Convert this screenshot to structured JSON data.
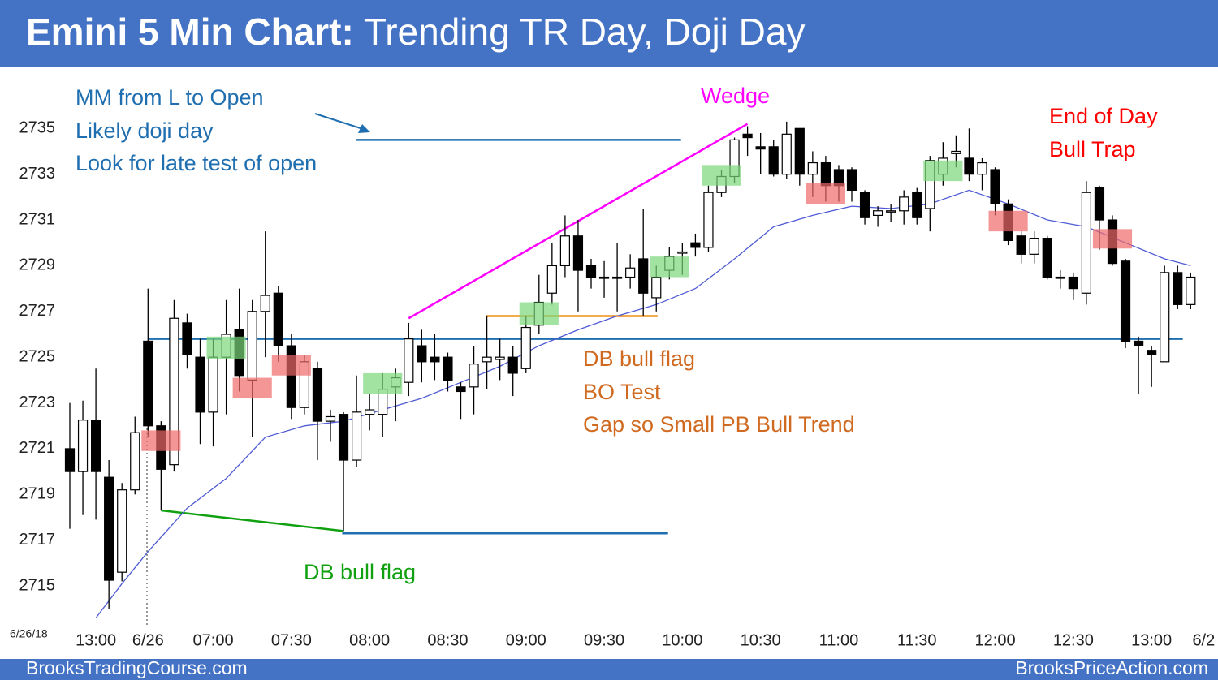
{
  "chart_data": {
    "type": "candlestick",
    "title_bold": "Emini 5 Min Chart:",
    "title_rest": "Trending TR Day, Doji Day",
    "date_label": "6/26/18",
    "footer_left": "BrooksTradingCourse.com",
    "footer_right": "BrooksPriceAction.com",
    "categories": [
      null,
      null,
      "13:00",
      null,
      null,
      null,
      "6/26",
      null,
      null,
      null,
      null,
      "07:00",
      null,
      null,
      null,
      null,
      null,
      "07:30",
      null,
      null,
      null,
      null,
      null,
      "08:00",
      null,
      null,
      null,
      null,
      null,
      "08:30",
      null,
      null,
      null,
      null,
      null,
      "09:00",
      null,
      null,
      null,
      null,
      null,
      "09:30",
      null,
      null,
      null,
      null,
      null,
      "10:00",
      null,
      null,
      null,
      null,
      null,
      "10:30",
      null,
      null,
      null,
      null,
      null,
      "11:00",
      null,
      null,
      null,
      null,
      null,
      "11:30",
      null,
      null,
      null,
      null,
      null,
      "12:00",
      null,
      null,
      null,
      null,
      null,
      "12:30",
      null,
      null,
      null,
      null,
      null,
      "13:00",
      null,
      null,
      null,
      "6/2"
    ],
    "open": [
      2721,
      2720,
      2722.25,
      2719.75,
      2715.6,
      2719.2,
      2725.7,
      2722,
      2720.3,
      2726.5,
      2725,
      2722.6,
      2725,
      2726.2,
      2724,
      2727,
      2727.8,
      2725.5,
      2722.8,
      2724.5,
      2722.2,
      2722.5,
      2720.5,
      2722.5,
      2722.5,
      2723.7,
      2723.9,
      2725.5,
      2725,
      2725,
      2723.7,
      2723.7,
      2724.8,
      2724.9,
      2725,
      2724.5,
      2726.4,
      2727.8,
      2729,
      2730.3,
      2729,
      2728.5,
      2728.5,
      2728.5,
      2729.3,
      2727.6,
      2728.8,
      2729.6,
      2730,
      2729.8,
      2732.2,
      2732.9,
      2734.75,
      2734.2,
      2734.2,
      2733,
      2735,
      2733,
      2733.5,
      2733.2,
      2733.2,
      2732.2,
      2731.2,
      2731.4,
      2731.4,
      2732.2,
      2731.5,
      2733,
      2733.9,
      2733.7,
      2733,
      2733.2,
      2731.7,
      2730.3,
      2729.5,
      2730.2,
      2728.5,
      2728.5,
      2727.8,
      2732.4,
      2731,
      2729.2,
      2725.7,
      2725.3,
      2724.8,
      2728.7,
      2727.3,
      null
    ],
    "high": [
      2723,
      2723.1,
      2724.5,
      2720.5,
      2719.5,
      2722.4,
      2728,
      2722.2,
      2727.5,
      2726.9,
      2725.8,
      2725.8,
      2727.5,
      2728,
      2727.5,
      2730.5,
      2728.1,
      2726,
      2725.1,
      2724.8,
      2722.7,
      2722.6,
      2724.2,
      2723.4,
      2724.3,
      2724.5,
      2726.5,
      2726.2,
      2726,
      2725.2,
      2723.9,
      2725.5,
      2726.8,
      2725.8,
      2725.5,
      2726.8,
      2728.6,
      2730,
      2731.2,
      2731,
      2729.3,
      2729.2,
      2730,
      2729.5,
      2731.5,
      2729,
      2729.8,
      2730,
      2730.4,
      2732.5,
      2733.2,
      2734.6,
      2735.1,
      2734.8,
      2734.5,
      2735.3,
      2735,
      2734,
      2733.8,
      2733.4,
      2733.3,
      2732.3,
      2731.6,
      2731.7,
      2732.3,
      2732.4,
      2733.8,
      2734.4,
      2734.7,
      2735,
      2733.7,
      2733.3,
      2731.9,
      2730.5,
      2730.5,
      2730.3,
      2728.8,
      2728.7,
      2732.7,
      2732.5,
      2731.2,
      2729.3,
      2725.9,
      2725.5,
      2729,
      2729,
      2728.7,
      null
    ],
    "low": [
      2717.5,
      2718.1,
      2717.9,
      2714,
      2715.2,
      2719,
      2721.5,
      2718.3,
      2720,
      2724.5,
      2721.2,
      2721.1,
      2722.5,
      2723.5,
      2721.5,
      2725,
      2724.8,
      2722.3,
      2722.5,
      2720.5,
      2721.3,
      2717.4,
      2720.2,
      2721.8,
      2721.5,
      2722.2,
      2723.3,
      2723.9,
      2724,
      2723.5,
      2722.3,
      2722.5,
      2723.6,
      2724,
      2723.3,
      2724.3,
      2726,
      2727.3,
      2728.5,
      2727,
      2728,
      2727.6,
      2727,
      2728,
      2726.8,
      2727,
      2728.4,
      2728.6,
      2729.4,
      2729.6,
      2732,
      2732.6,
      2733.8,
      2733,
      2732.9,
      2732.8,
      2732.5,
      2732,
      2731.8,
      2731.8,
      2731.8,
      2730.8,
      2730.7,
      2730.9,
      2730.8,
      2730.8,
      2730.5,
      2732.5,
      2733.3,
      2732.7,
      2732.3,
      2731.2,
      2729.9,
      2729.1,
      2729.1,
      2728.4,
      2728,
      2727.5,
      2727.3,
      2729.7,
      2729,
      2725.4,
      2723.4,
      2723.7,
      2724.8,
      2727.1,
      2727.1,
      null
    ],
    "close": [
      2720,
      2722.25,
      2720,
      2715.25,
      2719.2,
      2721.7,
      2722,
      2720.1,
      2726.7,
      2725.1,
      2722.6,
      2725,
      2726,
      2724.2,
      2727,
      2727.7,
      2725.5,
      2722.8,
      2724.8,
      2722.2,
      2722.4,
      2720.5,
      2722.6,
      2722.7,
      2723.6,
      2724.1,
      2725.8,
      2724.8,
      2724.8,
      2724,
      2723.5,
      2724.7,
      2725,
      2725,
      2724.3,
      2726.3,
      2727.4,
      2729,
      2730.3,
      2728.8,
      2728.5,
      2728.5,
      2728.5,
      2728.9,
      2727.8,
      2728.5,
      2729.4,
      2729.6,
      2729.8,
      2732.2,
      2732.9,
      2734.5,
      2734.6,
      2734.1,
      2733,
      2734.75,
      2733,
      2733.5,
      2732.5,
      2732.5,
      2732.3,
      2731.1,
      2731.4,
      2731.4,
      2732,
      2731.1,
      2733.6,
      2733.7,
      2734,
      2733,
      2733.5,
      2731.7,
      2730.1,
      2729.5,
      2730.2,
      2728.5,
      2728.5,
      2728,
      2732.2,
      2731,
      2729.1,
      2725.7,
      2725.5,
      2725.1,
      2728.7,
      2727.3,
      2728.5,
      null
    ],
    "up_color": "#ffffff",
    "down_color": "#000000",
    "ema": {
      "color": "#4f5bd5",
      "x": [
        2,
        4,
        6,
        9,
        12,
        15,
        18,
        21,
        24,
        27,
        30,
        33,
        36,
        39,
        42,
        45,
        48,
        51,
        54,
        57,
        60,
        63,
        66,
        69,
        72,
        75,
        78,
        81,
        84,
        86
      ],
      "values": [
        2713.6,
        2715.1,
        2716.5,
        2718.4,
        2719.7,
        2721.5,
        2722.0,
        2722.2,
        2722.7,
        2723.2,
        2723.9,
        2724.6,
        2725.5,
        2726.2,
        2726.8,
        2727.3,
        2728.0,
        2729.3,
        2730.7,
        2731.2,
        2731.6,
        2731.5,
        2731.7,
        2732.3,
        2731.7,
        2731.0,
        2730.7,
        2730.0,
        2729.3,
        2729.0
      ]
    },
    "lines": [
      {
        "x": [
          6,
          85.4
        ],
        "y": [
          2725.8,
          2725.8
        ],
        "color": "#1f6fb0"
      },
      {
        "x": [
          22,
          46.9
        ],
        "y": [
          2734.5,
          2734.5
        ],
        "color": "#1f6fb0"
      },
      {
        "x": [
          20.9,
          45.9
        ],
        "y": [
          2717.3,
          2717.3
        ],
        "color": "#1f6fb0"
      },
      {
        "x": [
          31.9,
          45.1
        ],
        "y": [
          2726.8,
          2726.8
        ],
        "color": "#f0901a"
      },
      {
        "x": [
          7,
          21
        ],
        "y": [
          2718.3,
          2717.4
        ],
        "color": "#10a010"
      },
      {
        "x": [
          26,
          52
        ],
        "y": [
          2726.7,
          2735.2
        ],
        "color": "#ff00ff"
      }
    ],
    "boxes": [
      {
        "index": 7,
        "top": 2721.8,
        "bottom": 2720.9,
        "color": "#f06a6a"
      },
      {
        "index": 12,
        "top": 2725.9,
        "bottom": 2724.9,
        "color": "#7ad77a"
      },
      {
        "index": 14,
        "top": 2724.1,
        "bottom": 2723.2,
        "color": "#f06a6a"
      },
      {
        "index": 17,
        "top": 2725.1,
        "bottom": 2724.2,
        "color": "#f06a6a"
      },
      {
        "index": 24,
        "top": 2724.3,
        "bottom": 2723.4,
        "color": "#7ad77a"
      },
      {
        "index": 36,
        "top": 2727.4,
        "bottom": 2726.4,
        "color": "#7ad77a"
      },
      {
        "index": 46,
        "top": 2729.4,
        "bottom": 2728.5,
        "color": "#7ad77a"
      },
      {
        "index": 50,
        "top": 2733.4,
        "bottom": 2732.5,
        "color": "#7ad77a"
      },
      {
        "index": 58,
        "top": 2732.6,
        "bottom": 2731.7,
        "color": "#f06a6a"
      },
      {
        "index": 67,
        "top": 2733.6,
        "bottom": 2732.7,
        "color": "#7ad77a"
      },
      {
        "index": 72,
        "top": 2731.4,
        "bottom": 2730.5,
        "color": "#f06a6a"
      },
      {
        "index": 80,
        "top": 2730.6,
        "bottom": 2729.75,
        "color": "#f06a6a"
      }
    ],
    "annotations": {
      "left_note": {
        "lines": [
          "MM from L to Open",
          "Likely doji day",
          "Look for late test of open"
        ],
        "color": "#1f6fb0"
      },
      "wedge": {
        "text": "Wedge",
        "color": "#ff00ff"
      },
      "bull_trap": {
        "lines": [
          "End of Day",
          "Bull Trap"
        ],
        "color": "#ff0000"
      },
      "middle_note": {
        "lines": [
          "DB bull flag",
          "BO Test",
          "Gap so Small PB Bull Trend"
        ],
        "color": "#d06a20"
      },
      "lower_note": {
        "text": "DB bull flag",
        "color": "#10a010"
      }
    },
    "ylim": [
      2713.3,
      2737.6
    ],
    "yticks": [
      2715,
      2717,
      2719,
      2721,
      2723,
      2725,
      2727,
      2729,
      2731,
      2733,
      2735
    ],
    "grid": false
  }
}
